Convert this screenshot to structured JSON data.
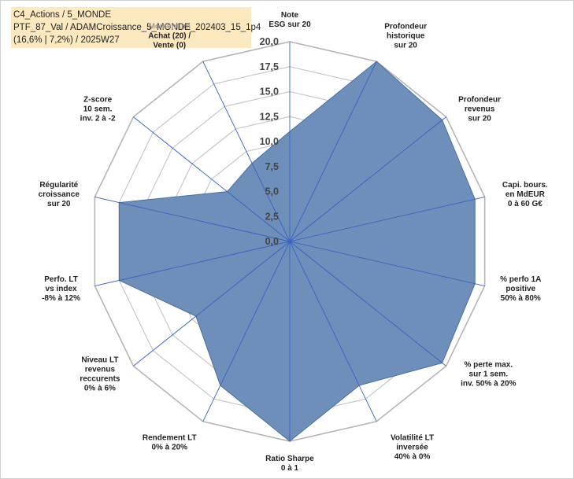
{
  "chart_data": {
    "type": "radar",
    "title_lines": [
      "C4_Actions / 5_MONDE",
      "PTF_87_Val / ADAMCroissance_5_MONDE_202403_15_1p4",
      "(16,6% | 7,2%) / 2025W27"
    ],
    "ylim": [
      0,
      20
    ],
    "ticks": [
      "0,0",
      "2,5",
      "5,0",
      "7,5",
      "10,0",
      "12,5",
      "15,0",
      "17,5",
      "20,0"
    ],
    "tick_values": [
      0,
      2.5,
      5,
      7.5,
      10,
      12.5,
      15,
      17.5,
      20
    ],
    "axes": [
      {
        "label": [
          "Note",
          "ESG sur 20"
        ],
        "value": 11.0
      },
      {
        "label": [
          "Profondeur",
          "historique",
          "sur 20"
        ],
        "value": 20.0
      },
      {
        "label": [
          "Profondeur",
          "revenus",
          "sur 20"
        ],
        "value": 19.5
      },
      {
        "label": [
          "Capi. bours.",
          "en MdEUR",
          "0 à 60 G€"
        ],
        "value": 19.0
      },
      {
        "label": [
          "% perfo 1A",
          "positive",
          "50% à 80%"
        ],
        "value": 19.0
      },
      {
        "label": [
          "% perte max.",
          "sur 1 sem.",
          "inv. 50% à 20%"
        ],
        "value": 19.5
      },
      {
        "label": [
          "Volatilité LT",
          "inversée",
          "40% à 0%"
        ],
        "value": 16.0
      },
      {
        "label": [
          "Ratio Sharpe",
          "0 à 1"
        ],
        "value": 20.0
      },
      {
        "label": [
          "Rendement LT",
          "0% à 20%"
        ],
        "value": 16.0
      },
      {
        "label": [
          "Niveau LT",
          "revenus",
          "reccurents",
          "0% à 6%"
        ],
        "value": 12.0
      },
      {
        "label": [
          "Perfo. LT",
          "vs index",
          "-8% à 12%"
        ],
        "value": 17.5
      },
      {
        "label": [
          "Régularité",
          "croissance",
          "sur 20"
        ],
        "value": 17.5
      },
      {
        "label": [
          "Z-score",
          "10 sem.",
          "inv. 2 à -2"
        ],
        "value": 8.0
      },
      {
        "label": [
          "Momentum",
          "Achat (20) /",
          "Vente (0)"
        ],
        "value": 8.7
      }
    ],
    "series": [
      {
        "fill": "#6d8fba",
        "stroke": "#4a6fa0"
      }
    ],
    "grid": true
  }
}
